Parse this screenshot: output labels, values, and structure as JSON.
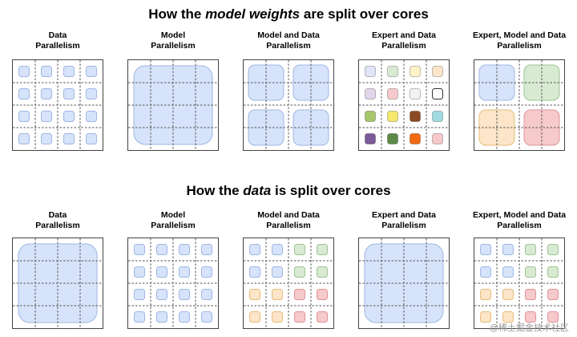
{
  "headings": {
    "weights": {
      "prefix": "How the ",
      "emphasis": "model weights",
      "suffix": " are split over cores"
    },
    "data": {
      "prefix": "How the ",
      "emphasis": "data",
      "suffix": " is split over cores"
    }
  },
  "watermark": "@稀土掘金技术社区",
  "colors": {
    "blue": "#d6e3fa",
    "blue_stroke": "#9fb6e3",
    "green": "#d9ead3",
    "green_stroke": "#9ec492",
    "orange": "#fce5c8",
    "orange_stroke": "#e8bb7a",
    "red": "#f6c9cb",
    "red_stroke": "#df9297",
    "grid_line": "#555555"
  },
  "panels_weights": [
    {
      "label": "Data\nParallelism",
      "type": "cells",
      "cells": [
        "blue",
        "blue",
        "blue",
        "blue",
        "blue",
        "blue",
        "blue",
        "blue",
        "blue",
        "blue",
        "blue",
        "blue",
        "blue",
        "blue",
        "blue",
        "blue"
      ]
    },
    {
      "label": "Model\nParallelism",
      "type": "blocks",
      "blocks": [
        {
          "color": "blue",
          "span": "full"
        }
      ]
    },
    {
      "label": "Model and Data\nParallelism",
      "type": "blocks",
      "blocks": [
        {
          "color": "blue",
          "span": "tl"
        },
        {
          "color": "blue",
          "span": "tr"
        },
        {
          "color": "blue",
          "span": "bl"
        },
        {
          "color": "blue",
          "span": "br"
        }
      ]
    },
    {
      "label": "Expert and Data\nParallelism",
      "type": "cells",
      "cells": [
        "#dfe4f6",
        "#d9ead3",
        "#fff2c7",
        "#fce5c8",
        "#e3d5e9",
        "#f6c9cb",
        "#f2f2f2",
        "#ffffff",
        "#a8c66c",
        "#f5e86b",
        "#8b4a24",
        "#9fdbe0",
        "#7a5a98",
        "#5d8a48",
        "#f26a12",
        "#f6c9cb"
      ]
    },
    {
      "label": "Expert, Model and Data\nParallelism",
      "type": "blocks",
      "blocks": [
        {
          "color": "blue",
          "span": "tl"
        },
        {
          "color": "green",
          "span": "tr"
        },
        {
          "color": "orange",
          "span": "bl"
        },
        {
          "color": "red",
          "span": "br"
        }
      ]
    }
  ],
  "panels_data": [
    {
      "label": "Data\nParallelism",
      "type": "blocks",
      "blocks": [
        {
          "color": "blue",
          "span": "full"
        }
      ]
    },
    {
      "label": "Model\nParallelism",
      "type": "cells",
      "cells": [
        "blue",
        "blue",
        "blue",
        "blue",
        "blue",
        "blue",
        "blue",
        "blue",
        "blue",
        "blue",
        "blue",
        "blue",
        "blue",
        "blue",
        "blue",
        "blue"
      ]
    },
    {
      "label": "Model and Data\nParallelism",
      "type": "cells",
      "cells": [
        "blue",
        "blue",
        "green",
        "green",
        "blue",
        "blue",
        "green",
        "green",
        "orange",
        "orange",
        "red",
        "red",
        "orange",
        "orange",
        "red",
        "red"
      ]
    },
    {
      "label": "Expert and Data\nParallelism",
      "type": "blocks",
      "blocks": [
        {
          "color": "blue",
          "span": "full"
        }
      ]
    },
    {
      "label": "Expert, Model and Data\nParallelism",
      "type": "cells",
      "cells": [
        "blue",
        "blue",
        "green",
        "green",
        "blue",
        "blue",
        "green",
        "green",
        "orange",
        "orange",
        "red",
        "red",
        "orange",
        "orange",
        "red",
        "red"
      ]
    }
  ]
}
